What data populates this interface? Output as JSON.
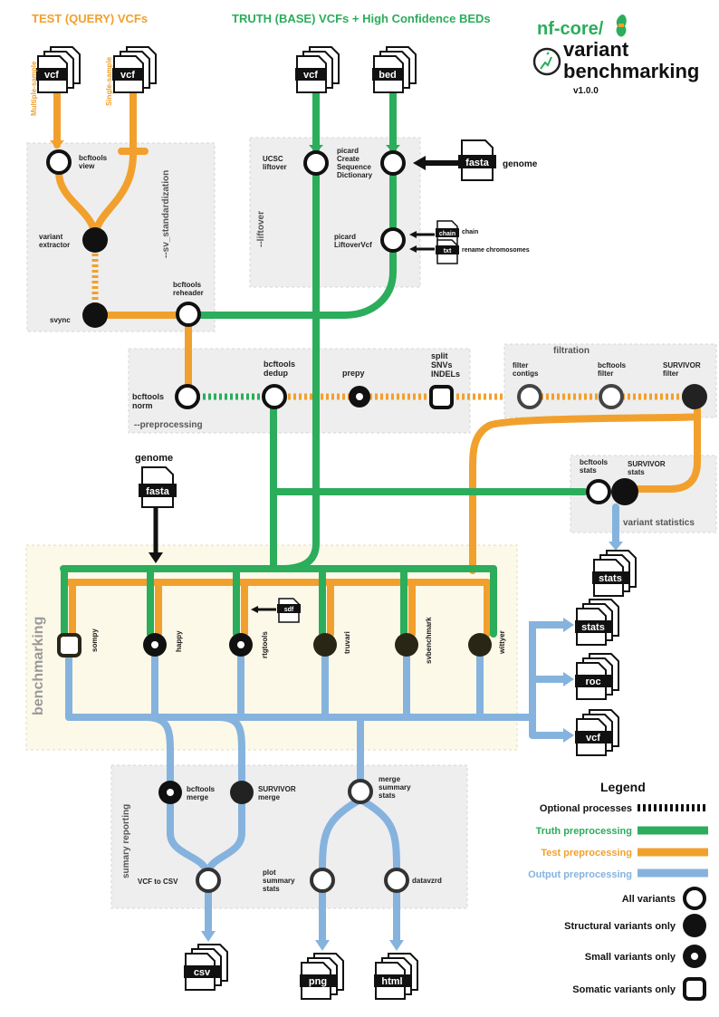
{
  "colors": {
    "truth": "#2bad5b",
    "test": "#f2a02d",
    "output": "#85b3de",
    "optional": "#111111",
    "box": "#eeeeee",
    "bench_box": "#fdf9e8"
  },
  "headers": {
    "test": "TEST (QUERY) VCFs",
    "truth": "TRUTH (BASE) VCFs + High Confidence BEDs"
  },
  "logo": {
    "brand": "nf-core/",
    "title_1": "variant",
    "title_2": "benchmarking",
    "version": "v1.0.0"
  },
  "files": {
    "vcf_multi": "vcf",
    "vcf_single": "vcf",
    "vcf_truth": "vcf",
    "bed": "bed",
    "fasta_top": "fasta",
    "chain": "chain",
    "txt": "txt",
    "fasta_bench": "fasta",
    "sdf": "sdf",
    "stats_top": "stats",
    "stats": "stats",
    "roc": "roc",
    "vcf_out": "vcf",
    "csv": "csv",
    "png": "png",
    "html": "html"
  },
  "side_labels": {
    "multi": "Multiple-sample",
    "single": "Single-sample",
    "genome_top": "genome",
    "chain": "chain",
    "rename": "rename chromosomes",
    "genome_bench": "genome"
  },
  "sections": {
    "sv": "--sv_standardization",
    "liftover": "--liftover",
    "preprocessing": "--preprocessing",
    "filtration": "filtration",
    "variant_stats": "variant statistics",
    "benchmarking": "benchmarking",
    "summary": "sumary reporting"
  },
  "steps": {
    "bcftools_view": [
      "bcftools",
      "view"
    ],
    "variant_extractor": [
      "variant",
      "extractor"
    ],
    "svync": [
      "svync"
    ],
    "bcftools_reheader": [
      "bcftools",
      "reheader"
    ],
    "ucsc_liftover": [
      "UCSC",
      "liftover"
    ],
    "picard_csd": [
      "picard",
      "Create",
      "Sequence",
      "Dictionary"
    ],
    "picard_liftover": [
      "picard",
      "LiftoverVcf"
    ],
    "bcftools_norm": [
      "bcftools",
      "norm"
    ],
    "bcftools_dedup": [
      "bcftools",
      "dedup"
    ],
    "prepy": [
      "prepy"
    ],
    "split": [
      "split",
      "SNVs",
      "INDELs"
    ],
    "filter_contigs": [
      "filter",
      "contigs"
    ],
    "bcftools_filter": [
      "bcftools",
      "filter"
    ],
    "survivor_filter": [
      "SURVIVOR",
      "filter"
    ],
    "bcftools_stats": [
      "bcftools",
      "stats"
    ],
    "survivor_stats": [
      "SURVIVOR",
      "stats"
    ],
    "bcftools_merge": [
      "bcftools",
      "merge"
    ],
    "survivor_merge": [
      "SURVIVOR",
      "merge"
    ],
    "merge_summary": [
      "merge",
      "summary",
      "stats"
    ],
    "vcf_to_csv": [
      "VCF to CSV"
    ],
    "plot_summary": [
      "plot",
      "summary",
      "stats"
    ],
    "datavzrd": [
      "datavzrd"
    ]
  },
  "tools": [
    "sompy",
    "happy",
    "rtgtools",
    "truvari",
    "svbenchmark",
    "wittyer"
  ],
  "legend": {
    "title": "Legend",
    "optional": "Optional processes",
    "truth": "Truth preprocessing",
    "test": "Test preprocessing",
    "output": "Output preprocessing",
    "all": "All variants",
    "structural": "Structural variants only",
    "small": "Small variants only",
    "somatic": "Somatic variants only"
  }
}
